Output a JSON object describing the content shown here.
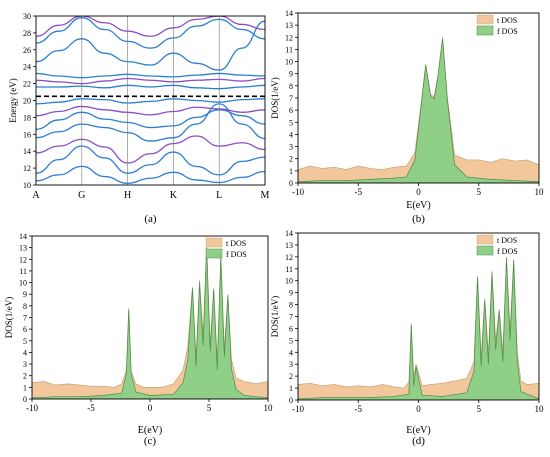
{
  "colors": {
    "total_fill": "#f2c79b",
    "total_stroke": "#c9a37a",
    "f_fill": "#8fcf88",
    "f_stroke": "#4a8c4a",
    "band_blue": "#2a7fd4",
    "band_purple": "#8a4fc8",
    "fermi": "#000000",
    "axis": "#000000"
  },
  "chart_data": [
    {
      "id": "a",
      "type": "line",
      "panel_label": "(a)",
      "ylabel": "Energy (eV)",
      "xlabel": "",
      "kpoints": [
        "A",
        "G",
        "H",
        "K",
        "L",
        "M"
      ],
      "kpoint_positions": [
        0,
        1,
        2,
        3,
        4,
        5
      ],
      "xlim": [
        0,
        5
      ],
      "ylim": [
        10,
        30
      ],
      "yticks": [
        10,
        12,
        14,
        16,
        18,
        20,
        22,
        24,
        26,
        28,
        30
      ],
      "fermi_level": 20.5,
      "bands": [
        {
          "color": "blue",
          "x": [
            0,
            0.5,
            1,
            1.5,
            2,
            2.5,
            3,
            3.5,
            4,
            4.5,
            5
          ],
          "y": [
            10.5,
            11.2,
            12.2,
            11.0,
            10.2,
            10.8,
            11.5,
            10.6,
            10.3,
            10.9,
            11.6
          ]
        },
        {
          "color": "blue",
          "x": [
            0,
            0.5,
            1,
            1.5,
            2,
            2.5,
            3,
            3.5,
            4,
            4.5,
            5
          ],
          "y": [
            11.4,
            13.0,
            14.6,
            13.2,
            11.4,
            12.4,
            13.9,
            12.2,
            11.2,
            12.8,
            13.3
          ]
        },
        {
          "color": "purple",
          "x": [
            0,
            0.5,
            1,
            1.5,
            2,
            2.5,
            3,
            3.5,
            4,
            4.5,
            5
          ],
          "y": [
            13.8,
            14.6,
            15.4,
            14.5,
            12.6,
            13.7,
            14.9,
            15.8,
            14.6,
            15.0,
            14.2
          ]
        },
        {
          "color": "blue",
          "x": [
            0,
            0.5,
            1,
            1.5,
            2,
            2.5,
            3,
            3.5,
            4,
            4.5,
            5
          ],
          "y": [
            15.6,
            16.3,
            17.2,
            16.8,
            16.2,
            15.2,
            15.6,
            17.2,
            19.6,
            17.2,
            15.5
          ]
        },
        {
          "color": "blue",
          "x": [
            0,
            0.5,
            1,
            1.5,
            2,
            2.5,
            3,
            3.5,
            4,
            4.5,
            5
          ],
          "y": [
            16.6,
            17.7,
            18.6,
            17.8,
            17.4,
            16.8,
            17.0,
            18.0,
            18.9,
            18.2,
            17.2
          ]
        },
        {
          "color": "purple",
          "x": [
            0,
            0.5,
            1,
            1.5,
            2,
            2.5,
            3,
            3.5,
            4,
            4.5,
            5
          ],
          "y": [
            18.2,
            18.7,
            19.3,
            18.9,
            18.6,
            18.3,
            18.7,
            19.2,
            19.0,
            18.6,
            18.9
          ]
        },
        {
          "color": "blue",
          "x": [
            0,
            0.5,
            1,
            1.5,
            2,
            2.5,
            3,
            3.5,
            4,
            4.5,
            5
          ],
          "y": [
            19.6,
            19.8,
            20.2,
            20.1,
            19.7,
            19.9,
            20.2,
            20.0,
            19.8,
            20.1,
            20.2
          ]
        },
        {
          "color": "blue",
          "x": [
            0,
            0.5,
            1,
            1.5,
            2,
            2.5,
            3,
            3.5,
            4,
            4.5,
            5
          ],
          "y": [
            21.6,
            21.6,
            21.7,
            21.5,
            21.8,
            21.6,
            21.8,
            21.5,
            21.4,
            21.6,
            21.8
          ]
        },
        {
          "color": "purple",
          "x": [
            0,
            0.5,
            1,
            1.5,
            2,
            2.5,
            3,
            3.5,
            4,
            4.5,
            5
          ],
          "y": [
            22.4,
            22.2,
            22.0,
            22.3,
            22.6,
            22.4,
            22.2,
            22.4,
            22.5,
            22.3,
            22.6
          ]
        },
        {
          "color": "blue",
          "x": [
            0,
            0.5,
            1,
            1.5,
            2,
            2.5,
            3,
            3.5,
            4,
            4.5,
            5
          ],
          "y": [
            23.2,
            22.9,
            22.7,
            22.9,
            23.1,
            22.9,
            22.8,
            23.0,
            23.2,
            23.0,
            22.9
          ]
        },
        {
          "color": "blue",
          "x": [
            0,
            0.5,
            1,
            1.5,
            2,
            2.5,
            3,
            3.5,
            4,
            4.5,
            5
          ],
          "y": [
            24.6,
            25.9,
            27.3,
            25.6,
            24.6,
            24.2,
            25.6,
            24.4,
            23.6,
            26.2,
            29.4
          ]
        },
        {
          "color": "blue",
          "x": [
            0,
            0.5,
            1,
            1.5,
            2,
            2.5,
            3,
            3.5,
            4,
            4.5,
            5
          ],
          "y": [
            26.8,
            28.2,
            29.8,
            28.4,
            27.0,
            26.2,
            27.4,
            28.8,
            29.6,
            28.4,
            27.3
          ]
        },
        {
          "color": "purple",
          "x": [
            0,
            0.5,
            1,
            1.5,
            2,
            2.5,
            3,
            3.5,
            4,
            4.5,
            5
          ],
          "y": [
            27.6,
            28.9,
            30.0,
            29.2,
            28.2,
            27.6,
            28.6,
            29.6,
            30.0,
            29.0,
            28.4
          ]
        }
      ]
    },
    {
      "id": "b",
      "type": "area",
      "panel_label": "(b)",
      "xlabel": "E(eV)",
      "ylabel": "DOS(1/eV)",
      "xlim": [
        -10,
        10
      ],
      "ylim": [
        0,
        14
      ],
      "xticks": [
        -10,
        -5,
        0,
        5,
        10
      ],
      "yticks": [
        0,
        1,
        2,
        3,
        4,
        5,
        6,
        7,
        8,
        9,
        10,
        11,
        12,
        13,
        14
      ],
      "legend": [
        "t DOS",
        "f DOS"
      ],
      "legend_position": "top-right",
      "series": [
        {
          "name": "t DOS",
          "x": [
            -10,
            -9,
            -8,
            -7,
            -6,
            -5,
            -4,
            -3,
            -2,
            -1,
            -0.3,
            0.2,
            0.6,
            1.0,
            1.3,
            1.6,
            2.0,
            2.4,
            3.0,
            4.0,
            5.0,
            6.0,
            7.0,
            8.0,
            9.0,
            10.0
          ],
          "y": [
            1.1,
            1.4,
            1.2,
            1.3,
            1.1,
            1.4,
            1.2,
            1.1,
            1.3,
            1.4,
            2.5,
            6.4,
            9.8,
            7.3,
            7.1,
            8.8,
            12.0,
            7.0,
            2.3,
            1.9,
            1.9,
            1.7,
            2.0,
            1.8,
            1.9,
            1.5
          ]
        },
        {
          "name": "f DOS",
          "x": [
            -10,
            -8,
            -6,
            -4,
            -2,
            -1,
            -0.3,
            0.2,
            0.6,
            1.0,
            1.3,
            1.6,
            2.0,
            2.4,
            3.0,
            4.0,
            6.0,
            8.0,
            10.0
          ],
          "y": [
            0.1,
            0.2,
            0.2,
            0.3,
            0.4,
            0.5,
            1.9,
            6.2,
            9.7,
            7.2,
            6.9,
            8.7,
            11.9,
            6.8,
            1.5,
            0.5,
            0.3,
            0.2,
            0.1
          ]
        }
      ]
    },
    {
      "id": "c",
      "type": "area",
      "panel_label": "(c)",
      "xlabel": "E(eV)",
      "ylabel": "DOS(1/eV)",
      "xlim": [
        -10,
        10
      ],
      "ylim": [
        0,
        14
      ],
      "xticks": [
        -10,
        -5,
        0,
        5,
        10
      ],
      "yticks": [
        0,
        1,
        2,
        3,
        4,
        5,
        6,
        7,
        8,
        9,
        10,
        11,
        12,
        13,
        14
      ],
      "legend": [
        "t DOS",
        "f DOS"
      ],
      "legend_position": "top-right",
      "series": [
        {
          "name": "t DOS",
          "x": [
            -10,
            -9,
            -8,
            -7,
            -6,
            -5,
            -4,
            -3,
            -2.4,
            -2.0,
            -1.8,
            -1.6,
            -1.2,
            -0.5,
            0,
            1,
            2,
            2.8,
            3.2,
            3.6,
            3.9,
            4.2,
            4.5,
            4.8,
            5.1,
            5.4,
            5.7,
            6.0,
            6.3,
            6.6,
            6.9,
            7.3,
            8,
            9,
            10
          ],
          "y": [
            1.4,
            1.5,
            1.2,
            1.3,
            1.2,
            1.1,
            1.1,
            1.0,
            1.3,
            2.5,
            7.8,
            2.4,
            1.3,
            1.0,
            1.0,
            1.0,
            1.3,
            2.5,
            4.5,
            9.6,
            3.6,
            10.2,
            5.5,
            13.1,
            4.8,
            9.5,
            3.2,
            12.3,
            4.3,
            9.0,
            3.4,
            1.8,
            1.5,
            1.3,
            1.5
          ]
        },
        {
          "name": "f DOS",
          "x": [
            -10,
            -8,
            -6,
            -4,
            -2.4,
            -2.0,
            -1.8,
            -1.6,
            -1.2,
            0,
            2,
            2.8,
            3.2,
            3.6,
            3.9,
            4.2,
            4.5,
            4.8,
            5.1,
            5.4,
            5.7,
            6.0,
            6.3,
            6.6,
            6.9,
            7.3,
            8,
            10
          ],
          "y": [
            0.1,
            0.2,
            0.2,
            0.3,
            0.5,
            2.2,
            7.7,
            2.2,
            0.6,
            0.3,
            0.4,
            1.4,
            3.4,
            9.5,
            2.8,
            10.0,
            4.6,
            13.0,
            4.1,
            9.4,
            2.5,
            12.2,
            3.6,
            8.9,
            2.6,
            0.8,
            0.3,
            0.1
          ]
        }
      ]
    },
    {
      "id": "d",
      "type": "area",
      "panel_label": "(d)",
      "xlabel": "E(eV)",
      "ylabel": "DOS(1/eV)",
      "xlim": [
        -10,
        10
      ],
      "ylim": [
        0,
        14
      ],
      "xticks": [
        -10,
        -5,
        0,
        5,
        10
      ],
      "yticks": [
        0,
        1,
        2,
        3,
        4,
        5,
        6,
        7,
        8,
        9,
        10,
        11,
        12,
        13,
        14
      ],
      "legend": [
        "t DOS",
        "f DOS"
      ],
      "legend_position": "top-right",
      "series": [
        {
          "name": "t DOS",
          "x": [
            -10,
            -9,
            -8,
            -7,
            -6,
            -5,
            -4,
            -3,
            -2,
            -1.2,
            -0.8,
            -0.6,
            -0.4,
            -0.2,
            0.3,
            1,
            2,
            3,
            4,
            4.6,
            4.9,
            5.2,
            5.5,
            5.8,
            6.1,
            6.4,
            6.7,
            7.0,
            7.3,
            7.6,
            7.9,
            8.2,
            8.5,
            9,
            10
          ],
          "y": [
            1.3,
            1.4,
            1.2,
            1.3,
            1.1,
            1.2,
            1.1,
            1.3,
            1.1,
            1.0,
            1.5,
            6.4,
            2.0,
            3.0,
            1.2,
            1.3,
            1.4,
            1.6,
            1.8,
            3.2,
            10.4,
            3.6,
            8.5,
            3.8,
            10.8,
            5.0,
            7.6,
            4.0,
            12.0,
            5.8,
            11.8,
            4.0,
            1.6,
            1.3,
            1.4
          ]
        },
        {
          "name": "f DOS",
          "x": [
            -10,
            -8,
            -6,
            -4,
            -2,
            -0.8,
            -0.6,
            -0.4,
            -0.2,
            0.3,
            2,
            4,
            4.6,
            4.9,
            5.2,
            5.5,
            5.8,
            6.1,
            6.4,
            6.7,
            7.0,
            7.3,
            7.6,
            7.9,
            8.2,
            8.5,
            10
          ],
          "y": [
            0.1,
            0.2,
            0.2,
            0.2,
            0.3,
            0.5,
            6.3,
            1.2,
            2.8,
            0.4,
            0.3,
            0.6,
            2.4,
            10.3,
            2.8,
            8.4,
            3.0,
            10.7,
            4.2,
            7.5,
            3.2,
            11.9,
            5.0,
            11.7,
            3.2,
            0.7,
            0.1
          ]
        }
      ]
    }
  ]
}
